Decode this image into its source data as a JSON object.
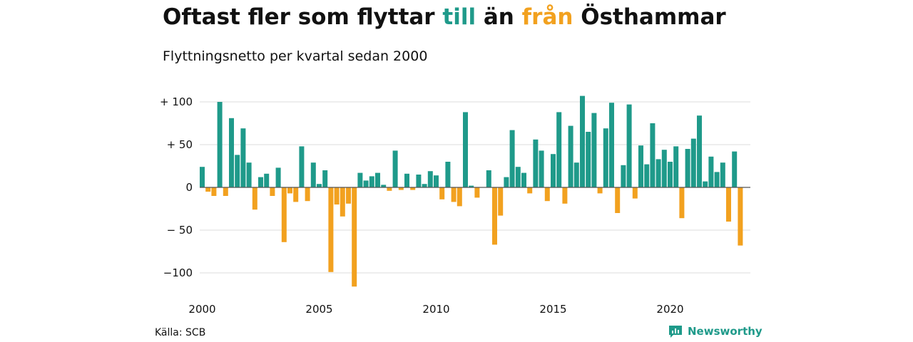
{
  "header": {
    "title_parts": [
      "Oftast fler som flyttar ",
      "till",
      " än ",
      "från",
      " Östhammar"
    ],
    "subtitle": "Flyttningsnetto per kvartal sedan 2000"
  },
  "colors": {
    "positive": "#1f9a8a",
    "negative": "#f2a11f",
    "grid": "#dddddd",
    "text": "#111111"
  },
  "chart_data": {
    "type": "bar",
    "title": "Oftast fler som flyttar till än från Östhammar",
    "subtitle": "Flyttningsnetto per kvartal sedan 2000",
    "x_start": "2000 Q1",
    "x_ticks": [
      "2000",
      "2005",
      "2010",
      "2015",
      "2020"
    ],
    "y_ticks": [
      100,
      50,
      0,
      -50,
      -100
    ],
    "y_tick_labels": [
      "+ 100",
      "+  50",
      "0",
      "− 50",
      "−100"
    ],
    "ylim": [
      -120,
      110
    ],
    "grid": true,
    "values": [
      24,
      -5,
      -10,
      100,
      -10,
      81,
      38,
      69,
      29,
      -26,
      12,
      16,
      -10,
      23,
      -64,
      -7,
      -17,
      48,
      -16,
      29,
      4,
      20,
      -99,
      -20,
      -34,
      -19,
      -116,
      17,
      8,
      13,
      17,
      3,
      -4,
      43,
      -3,
      16,
      -3,
      15,
      4,
      19,
      14,
      -14,
      30,
      -17,
      -22,
      88,
      2,
      -12,
      0,
      20,
      -67,
      -33,
      12,
      67,
      24,
      17,
      -7,
      56,
      43,
      -16,
      39,
      88,
      -19,
      72,
      29,
      107,
      65,
      87,
      -7,
      69,
      99,
      -30,
      26,
      97,
      -13,
      49,
      27,
      75,
      33,
      44,
      30,
      48,
      -36,
      45,
      57,
      84,
      7,
      36,
      18,
      29,
      -40,
      42,
      -68
    ]
  },
  "footer": {
    "source": "Källa: SCB",
    "brand": "Newsworthy"
  }
}
